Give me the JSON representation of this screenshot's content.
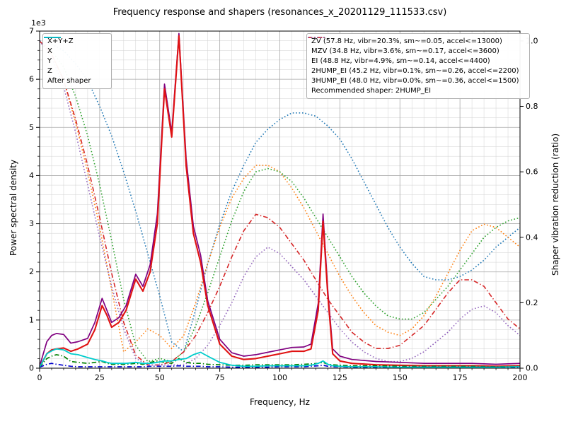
{
  "chart_data": {
    "type": "line",
    "title": "Frequency response and shapers (resonances_x_20201129_111533.csv)",
    "xlabel": "Frequency, Hz",
    "ylabel_left": "Power spectral density",
    "ylabel_right": "Shaper vibration reduction (ratio)",
    "left_scale_note": "1e3",
    "xlim": [
      0,
      200
    ],
    "x_major_ticks": [
      0,
      25,
      50,
      75,
      100,
      125,
      150,
      175,
      200
    ],
    "x_minor_step": 5,
    "ylim_left": [
      0,
      7
    ],
    "y_major_ticks_left": [
      0,
      1,
      2,
      3,
      4,
      5,
      6,
      7
    ],
    "y_minor_step_left": 0.2,
    "ylim_right": [
      0,
      1.03
    ],
    "y_major_ticks_right": [
      0.0,
      0.2,
      0.4,
      0.6,
      0.8,
      1.0
    ],
    "grid": true,
    "legend_position": {
      "left": "upper left",
      "right": "upper right"
    },
    "recommended_note": "Recommended shaper: 2HUMP_EI",
    "psd_freq": [
      0,
      3,
      5,
      7,
      10,
      13,
      16,
      20,
      23,
      26,
      28,
      30,
      33,
      36,
      40,
      43,
      46,
      49,
      52,
      55,
      58,
      61,
      64,
      67,
      70,
      75,
      80,
      85,
      90,
      95,
      100,
      105,
      110,
      113,
      116,
      118,
      120,
      122,
      125,
      130,
      140,
      150,
      160,
      170,
      180,
      190,
      200
    ],
    "psd_units": "1e3",
    "psd_series": [
      {
        "name": "X+Y+Z",
        "label": "X+Y+Z",
        "color": "#800080",
        "dash": "solid",
        "values": [
          0.04,
          0.55,
          0.68,
          0.72,
          0.7,
          0.52,
          0.55,
          0.62,
          0.95,
          1.45,
          1.2,
          0.95,
          1.05,
          1.3,
          1.95,
          1.7,
          2.15,
          3.2,
          5.9,
          4.9,
          6.95,
          4.35,
          2.95,
          2.35,
          1.4,
          0.6,
          0.32,
          0.25,
          0.28,
          0.33,
          0.38,
          0.43,
          0.44,
          0.5,
          1.35,
          3.2,
          1.6,
          0.4,
          0.25,
          0.18,
          0.14,
          0.12,
          0.1,
          0.1,
          0.1,
          0.08,
          0.1
        ]
      },
      {
        "name": "X",
        "label": "X",
        "color": "#e01313",
        "dash": "solid",
        "values": [
          0.02,
          0.3,
          0.38,
          0.4,
          0.42,
          0.35,
          0.4,
          0.5,
          0.8,
          1.3,
          1.1,
          0.85,
          0.95,
          1.2,
          1.85,
          1.6,
          2.0,
          3.0,
          5.8,
          4.8,
          6.9,
          4.2,
          2.8,
          2.2,
          1.3,
          0.5,
          0.25,
          0.18,
          0.2,
          0.25,
          0.3,
          0.35,
          0.35,
          0.4,
          1.2,
          3.05,
          1.5,
          0.3,
          0.15,
          0.1,
          0.07,
          0.06,
          0.05,
          0.05,
          0.05,
          0.04,
          0.05
        ]
      },
      {
        "name": "Y",
        "label": "Y",
        "color": "#008000",
        "dash": "dashdot",
        "values": [
          0.02,
          0.2,
          0.25,
          0.28,
          0.25,
          0.14,
          0.12,
          0.1,
          0.12,
          0.14,
          0.1,
          0.08,
          0.08,
          0.08,
          0.1,
          0.08,
          0.12,
          0.15,
          0.12,
          0.1,
          0.2,
          0.12,
          0.1,
          0.1,
          0.08,
          0.07,
          0.06,
          0.06,
          0.07,
          0.07,
          0.07,
          0.07,
          0.08,
          0.09,
          0.1,
          0.12,
          0.08,
          0.07,
          0.06,
          0.05,
          0.05,
          0.04,
          0.04,
          0.04,
          0.04,
          0.03,
          0.04
        ]
      },
      {
        "name": "Z",
        "label": "Z",
        "color": "#0000cc",
        "dash": "dashdot",
        "values": [
          0.02,
          0.08,
          0.1,
          0.08,
          0.06,
          0.04,
          0.03,
          0.03,
          0.03,
          0.03,
          0.03,
          0.03,
          0.03,
          0.03,
          0.03,
          0.03,
          0.04,
          0.04,
          0.04,
          0.04,
          0.05,
          0.04,
          0.04,
          0.04,
          0.03,
          0.03,
          0.02,
          0.02,
          0.02,
          0.02,
          0.03,
          0.03,
          0.03,
          0.04,
          0.05,
          0.06,
          0.04,
          0.03,
          0.03,
          0.02,
          0.02,
          0.02,
          0.02,
          0.02,
          0.02,
          0.02,
          0.02
        ]
      },
      {
        "name": "After shaper",
        "label": "After shaper",
        "color": "#00cccc",
        "dash": "solid",
        "values": [
          0.02,
          0.3,
          0.36,
          0.4,
          0.38,
          0.3,
          0.28,
          0.22,
          0.18,
          0.15,
          0.12,
          0.1,
          0.1,
          0.1,
          0.12,
          0.1,
          0.1,
          0.12,
          0.15,
          0.15,
          0.18,
          0.2,
          0.28,
          0.33,
          0.25,
          0.12,
          0.06,
          0.04,
          0.04,
          0.05,
          0.05,
          0.05,
          0.05,
          0.06,
          0.1,
          0.15,
          0.08,
          0.05,
          0.04,
          0.03,
          0.03,
          0.02,
          0.02,
          0.02,
          0.02,
          0.02,
          0.03
        ]
      }
    ],
    "shaper_freq": [
      0,
      5,
      10,
      15,
      20,
      25,
      30,
      35,
      40,
      45,
      50,
      55,
      60,
      65,
      70,
      75,
      80,
      85,
      90,
      95,
      100,
      105,
      110,
      115,
      120,
      125,
      130,
      135,
      140,
      145,
      150,
      155,
      160,
      165,
      170,
      175,
      180,
      185,
      190,
      195,
      200
    ],
    "shaper_series": [
      {
        "name": "ZV",
        "label": "ZV (57.8 Hz, vibr=20.3%, sm~=0.05, accel<=13000)",
        "color": "#1f77b4",
        "dash": "dotted",
        "values": [
          1.0,
          0.99,
          0.97,
          0.93,
          0.88,
          0.8,
          0.71,
          0.6,
          0.48,
          0.35,
          0.22,
          0.08,
          0.05,
          0.18,
          0.32,
          0.44,
          0.54,
          0.62,
          0.69,
          0.73,
          0.76,
          0.78,
          0.78,
          0.77,
          0.74,
          0.7,
          0.64,
          0.57,
          0.5,
          0.43,
          0.37,
          0.32,
          0.28,
          0.27,
          0.27,
          0.28,
          0.3,
          0.33,
          0.37,
          0.4,
          0.43
        ]
      },
      {
        "name": "MZV",
        "label": "MZV (34.8 Hz, vibr=3.6%, sm~=0.17, accel<=3600)",
        "color": "#ff7f0e",
        "dash": "dotted",
        "values": [
          1.0,
          0.96,
          0.88,
          0.75,
          0.6,
          0.43,
          0.24,
          0.05,
          0.08,
          0.12,
          0.1,
          0.06,
          0.1,
          0.2,
          0.32,
          0.43,
          0.52,
          0.58,
          0.62,
          0.62,
          0.6,
          0.55,
          0.49,
          0.42,
          0.35,
          0.28,
          0.22,
          0.17,
          0.13,
          0.11,
          0.1,
          0.12,
          0.16,
          0.22,
          0.29,
          0.36,
          0.42,
          0.44,
          0.43,
          0.4,
          0.37
        ]
      },
      {
        "name": "EI",
        "label": "EI (48.8 Hz, vibr=4.9%, sm~=0.14, accel<=4400)",
        "color": "#2ca02c",
        "dash": "dotted",
        "values": [
          1.0,
          0.97,
          0.92,
          0.83,
          0.71,
          0.56,
          0.39,
          0.21,
          0.07,
          0.02,
          0.03,
          0.02,
          0.05,
          0.13,
          0.23,
          0.34,
          0.45,
          0.54,
          0.6,
          0.61,
          0.6,
          0.57,
          0.52,
          0.46,
          0.4,
          0.34,
          0.28,
          0.23,
          0.19,
          0.16,
          0.15,
          0.15,
          0.17,
          0.21,
          0.25,
          0.3,
          0.35,
          0.4,
          0.43,
          0.45,
          0.46
        ]
      },
      {
        "name": "2HUMP_EI",
        "label": "2HUMP_EI (45.2 Hz, vibr=0.1%, sm~=0.26, accel<=2200)",
        "color": "#d62728",
        "dash": "dashdot",
        "values": [
          1.0,
          0.96,
          0.88,
          0.76,
          0.62,
          0.46,
          0.29,
          0.14,
          0.04,
          0.01,
          0.01,
          0.02,
          0.05,
          0.1,
          0.17,
          0.25,
          0.34,
          0.42,
          0.47,
          0.46,
          0.43,
          0.38,
          0.33,
          0.27,
          0.21,
          0.16,
          0.11,
          0.08,
          0.06,
          0.06,
          0.07,
          0.1,
          0.13,
          0.18,
          0.23,
          0.27,
          0.27,
          0.25,
          0.2,
          0.15,
          0.12
        ]
      },
      {
        "name": "3HUMP_EI",
        "label": "3HUMP_EI (48.0 Hz, vibr=0.0%, sm~=0.36, accel<=1500)",
        "color": "#9467bd",
        "dash": "dotted",
        "values": [
          1.0,
          0.95,
          0.86,
          0.72,
          0.56,
          0.4,
          0.25,
          0.12,
          0.03,
          0.01,
          0.01,
          0.01,
          0.01,
          0.03,
          0.07,
          0.13,
          0.2,
          0.28,
          0.34,
          0.37,
          0.35,
          0.31,
          0.27,
          0.22,
          0.17,
          0.12,
          0.08,
          0.05,
          0.03,
          0.02,
          0.02,
          0.03,
          0.05,
          0.08,
          0.11,
          0.15,
          0.18,
          0.19,
          0.17,
          0.13,
          0.1
        ]
      }
    ]
  }
}
